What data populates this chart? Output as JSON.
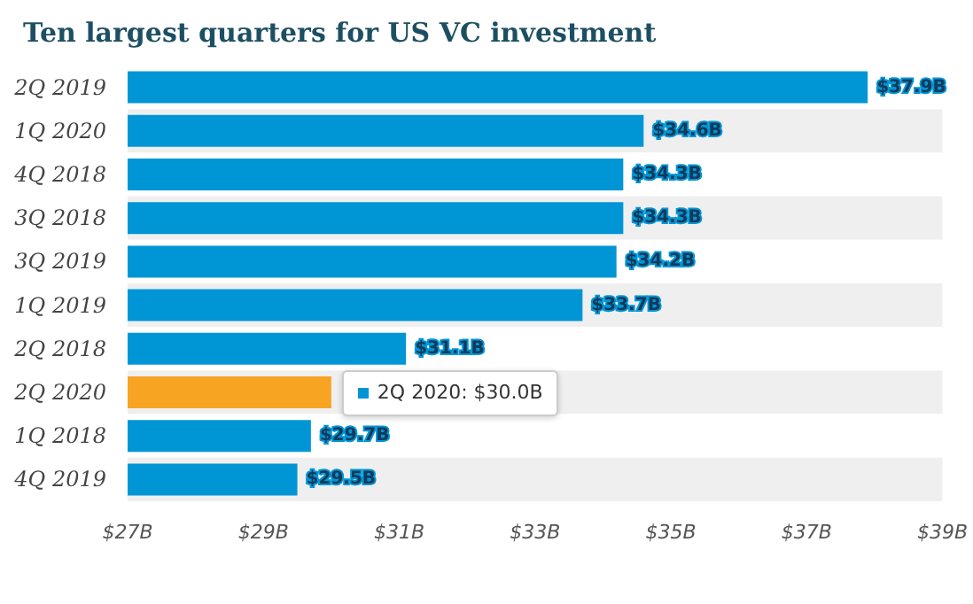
{
  "chart_data": {
    "type": "bar",
    "orientation": "horizontal",
    "title": "Ten largest quarters for US VC investment",
    "categories": [
      "2Q 2019",
      "1Q 2020",
      "4Q 2018",
      "3Q 2018",
      "3Q 2019",
      "1Q 2019",
      "2Q 2018",
      "2Q 2020",
      "1Q 2018",
      "4Q 2019"
    ],
    "values": [
      37.9,
      34.6,
      34.3,
      34.3,
      34.2,
      33.7,
      31.1,
      30.0,
      29.7,
      29.5
    ],
    "colors": [
      "#0096d6",
      "#0096d6",
      "#0096d6",
      "#0096d6",
      "#0096d6",
      "#0096d6",
      "#0096d6",
      "#f7a423",
      "#0096d6",
      "#0096d6"
    ],
    "value_labels": [
      "$37.9B",
      "$34.6B",
      "$34.3B",
      "$34.3B",
      "$34.2B",
      "$33.7B",
      "$31.1B",
      null,
      "$29.7B",
      "$29.5B"
    ],
    "xlim": [
      27,
      39
    ],
    "xticks": [
      {
        "value": 27,
        "label": "$27B"
      },
      {
        "value": 29,
        "label": "$29B"
      },
      {
        "value": 31,
        "label": "$31B"
      },
      {
        "value": 33,
        "label": "$33B"
      },
      {
        "value": 35,
        "label": "$35B"
      },
      {
        "value": 37,
        "label": "$37B"
      },
      {
        "value": 39,
        "label": "$39B"
      }
    ],
    "annotations": [
      {
        "text": "2Q 2020: $30.0B",
        "x": 30.0,
        "y": "2Q 2020"
      }
    ],
    "grid": false
  }
}
